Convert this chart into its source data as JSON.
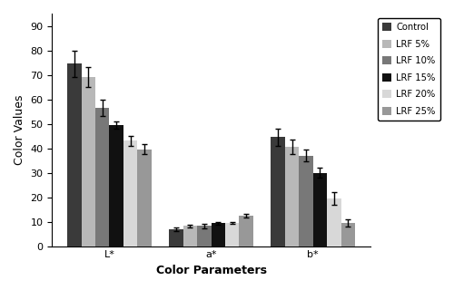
{
  "categories": [
    "L*",
    "a*",
    "b*"
  ],
  "series": [
    {
      "label": "Control",
      "color": "#3a3a3a",
      "values": [
        74.5,
        7.0,
        44.5
      ],
      "errors": [
        5.5,
        0.8,
        3.5
      ]
    },
    {
      "label": "LRF 5%",
      "color": "#b8b8b8",
      "values": [
        69.0,
        8.2,
        40.5
      ],
      "errors": [
        4.0,
        0.7,
        3.0
      ]
    },
    {
      "label": "LRF 10%",
      "color": "#787878",
      "values": [
        56.5,
        8.2,
        37.0
      ],
      "errors": [
        3.5,
        0.8,
        2.5
      ]
    },
    {
      "label": "LRF 15%",
      "color": "#111111",
      "values": [
        49.5,
        9.3,
        30.0
      ],
      "errors": [
        1.5,
        0.7,
        2.0
      ]
    },
    {
      "label": "LRF 20%",
      "color": "#d8d8d8",
      "values": [
        43.0,
        9.5,
        19.5
      ],
      "errors": [
        2.0,
        0.5,
        2.5
      ]
    },
    {
      "label": "LRF 25%",
      "color": "#989898",
      "values": [
        39.5,
        12.5,
        9.5
      ],
      "errors": [
        2.0,
        0.7,
        1.5
      ]
    }
  ],
  "ylabel": "Color Values",
  "xlabel": "Color Parameters",
  "ylim": [
    0,
    95
  ],
  "yticks": [
    0,
    10,
    20,
    30,
    40,
    50,
    60,
    70,
    80,
    90
  ],
  "bar_width": 0.11,
  "group_positions": [
    0.35,
    1.15,
    1.95
  ],
  "figsize": [
    5.0,
    3.2
  ],
  "dpi": 100,
  "legend_fontsize": 7.2,
  "axis_fontsize": 9,
  "tick_fontsize": 8
}
